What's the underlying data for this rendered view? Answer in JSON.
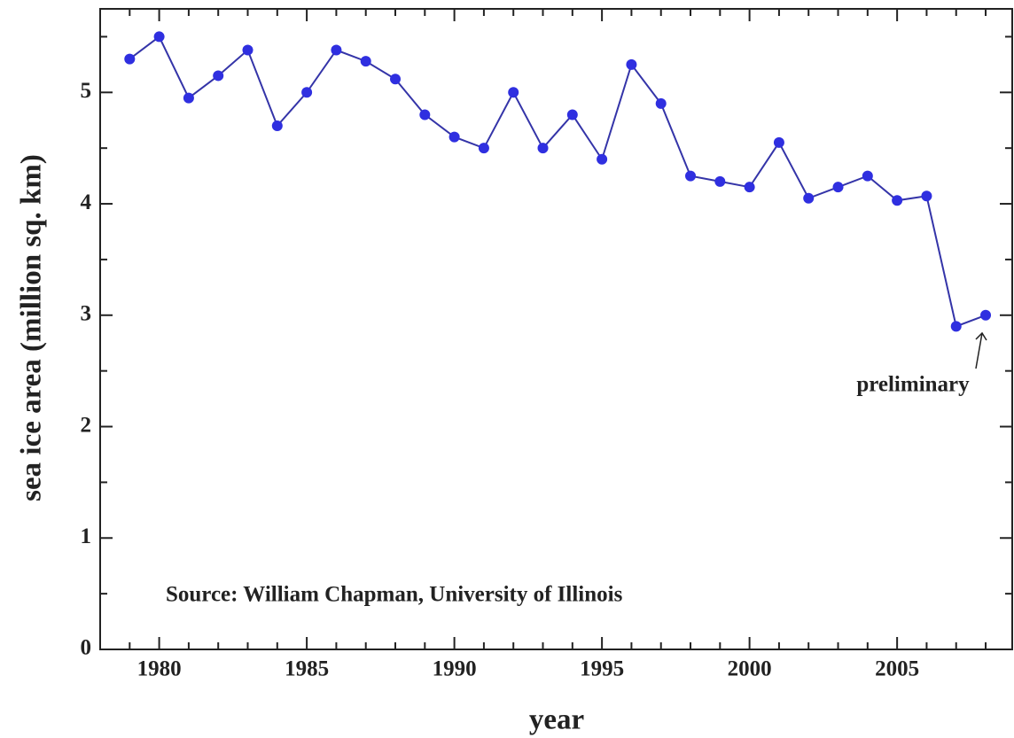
{
  "chart_data": {
    "type": "line",
    "annotations": [
      "Source: William Chapman, University of Illinois",
      "preliminary"
    ],
    "x_label": "year",
    "y_label": "sea ice area (million sq. km)",
    "x": [
      1979,
      1980,
      1981,
      1982,
      1983,
      1984,
      1985,
      1986,
      1987,
      1988,
      1989,
      1990,
      1991,
      1992,
      1993,
      1994,
      1995,
      1996,
      1997,
      1998,
      1999,
      2000,
      2001,
      2002,
      2003,
      2004,
      2005,
      2006,
      2007,
      2008
    ],
    "values": [
      5.3,
      5.5,
      4.95,
      5.15,
      5.38,
      4.7,
      5.0,
      5.38,
      5.28,
      5.12,
      4.8,
      4.6,
      4.5,
      5.0,
      4.5,
      4.8,
      4.4,
      5.25,
      4.9,
      4.25,
      4.2,
      4.15,
      4.55,
      4.05,
      4.15,
      4.25,
      4.03,
      4.07,
      2.9,
      3.0
    ],
    "color": "#2f2fe0",
    "line_color": "#3434a8",
    "xlim": [
      1978,
      2008.9
    ],
    "ylim": [
      0,
      5.75
    ],
    "xticks": [
      1980,
      1985,
      1990,
      1995,
      2000,
      2005
    ],
    "yticks": [
      0,
      1,
      2,
      3,
      4,
      5
    ],
    "xminor": [
      1979,
      1981,
      1982,
      1983,
      1984,
      1986,
      1987,
      1988,
      1989,
      1991,
      1992,
      1993,
      1994,
      1996,
      1997,
      1998,
      1999,
      2001,
      2002,
      2003,
      2004,
      2006,
      2007,
      2008
    ],
    "yminor": [
      0.5,
      1.5,
      2.5,
      3.5,
      4.5,
      5.5
    ]
  }
}
